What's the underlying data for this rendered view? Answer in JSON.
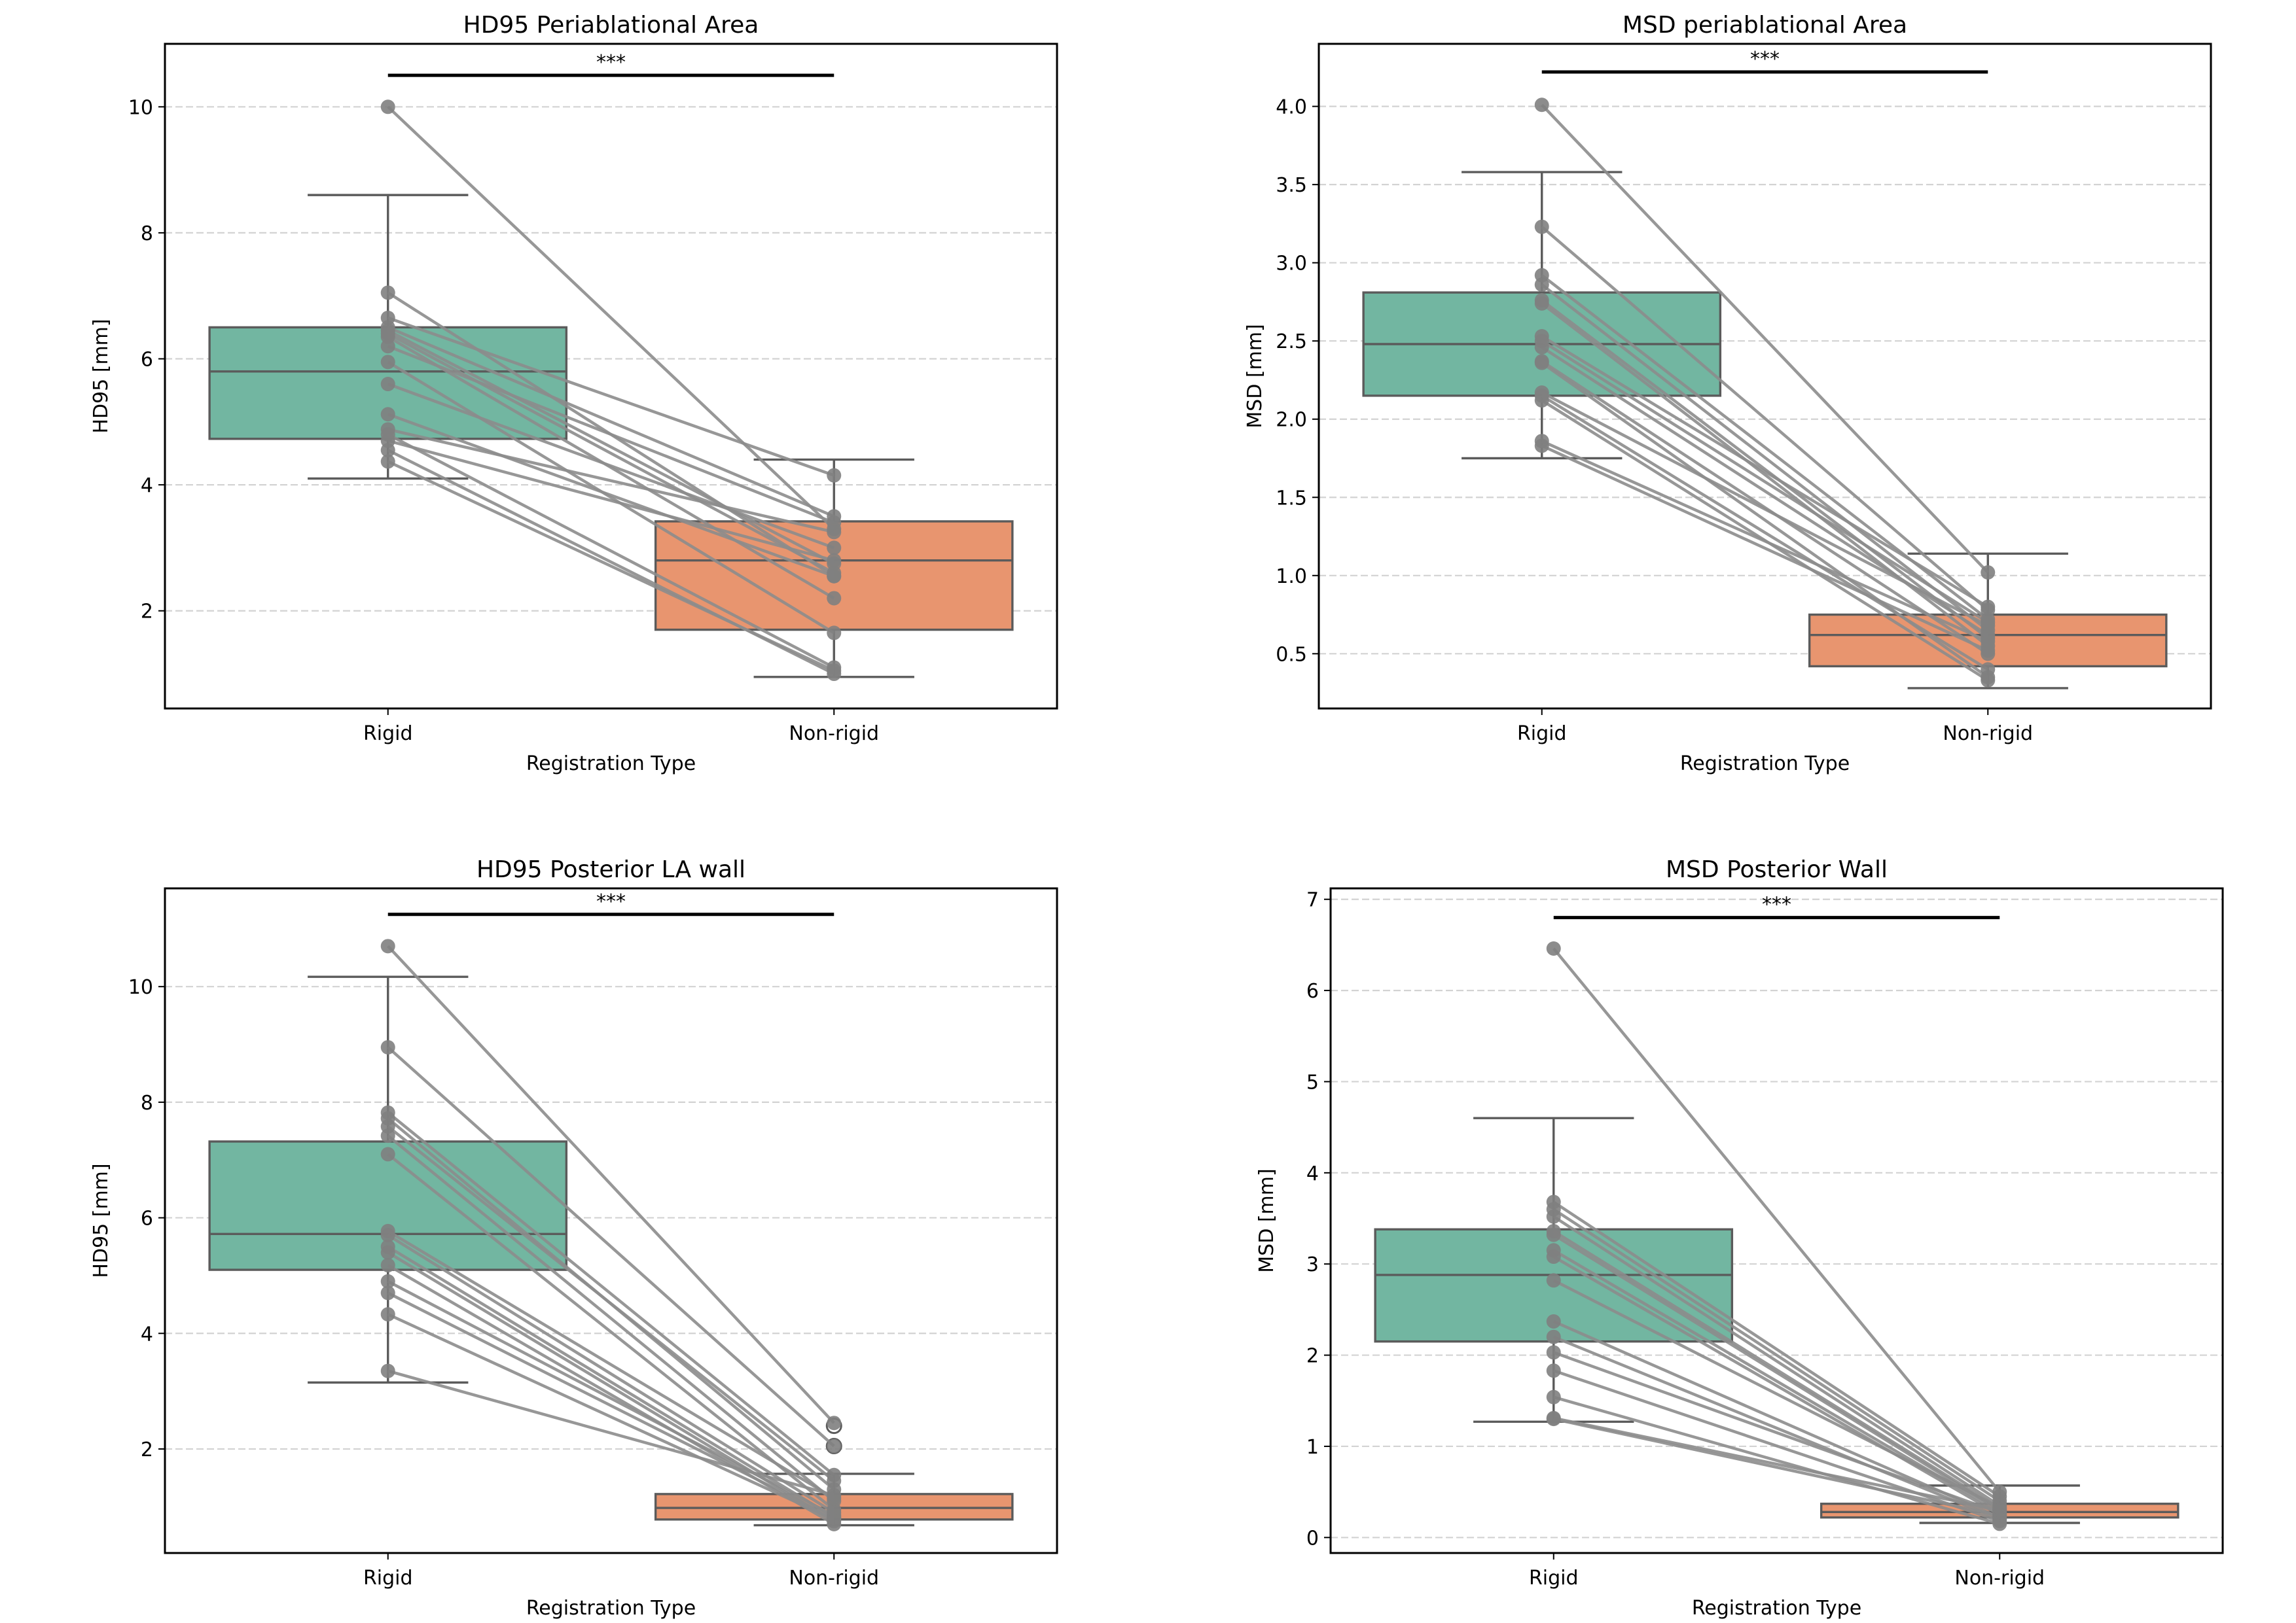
{
  "chart_data": [
    {
      "type": "box",
      "title": "HD95 Periablational Area",
      "xlabel": "Registration Type",
      "ylabel": "HD95 [mm]",
      "categories": [
        "Rigid",
        "Non-rigid"
      ],
      "ylim": [
        0.45,
        11.0
      ],
      "yticks": [
        2,
        4,
        6,
        8,
        10
      ],
      "ytick_labels": [
        "2",
        "4",
        "6",
        "8",
        "10"
      ],
      "grid": "y-dashed",
      "significance": {
        "label": "***",
        "y": 10.5
      },
      "boxes": [
        {
          "category": "Rigid",
          "whisker_low": 4.1,
          "q1": 4.73,
          "median": 5.8,
          "q3": 6.5,
          "whisker_high": 8.6,
          "fliers": []
        },
        {
          "category": "Non-rigid",
          "whisker_low": 0.95,
          "q1": 1.7,
          "median": 2.8,
          "q3": 3.42,
          "whisker_high": 4.4,
          "fliers": []
        }
      ],
      "paired_points": [
        [
          10.0,
          3.3
        ],
        [
          7.05,
          2.55
        ],
        [
          6.65,
          4.15
        ],
        [
          6.5,
          3.5
        ],
        [
          6.45,
          2.75
        ],
        [
          6.4,
          2.6
        ],
        [
          6.35,
          2.2
        ],
        [
          6.2,
          3.4
        ],
        [
          5.95,
          1.65
        ],
        [
          5.6,
          3.0
        ],
        [
          5.12,
          2.55
        ],
        [
          4.88,
          3.25
        ],
        [
          4.8,
          1.1
        ],
        [
          4.7,
          2.8
        ],
        [
          4.55,
          1.0
        ],
        [
          4.37,
          1.05
        ]
      ]
    },
    {
      "type": "box",
      "title": "MSD periablational Area",
      "xlabel": "Registration Type",
      "ylabel": "MSD [mm]",
      "categories": [
        "Rigid",
        "Non-rigid"
      ],
      "ylim": [
        0.15,
        4.4
      ],
      "yticks": [
        0.5,
        1.0,
        1.5,
        2.0,
        2.5,
        3.0,
        3.5,
        4.0
      ],
      "ytick_labels": [
        "0.5",
        "1.0",
        "1.5",
        "2.0",
        "2.5",
        "3.0",
        "3.5",
        "4.0"
      ],
      "grid": "y-dashed",
      "significance": {
        "label": "***",
        "y": 4.22
      },
      "boxes": [
        {
          "category": "Rigid",
          "whisker_low": 1.75,
          "q1": 2.15,
          "median": 2.48,
          "q3": 2.81,
          "whisker_high": 3.58,
          "fliers": []
        },
        {
          "category": "Non-rigid",
          "whisker_low": 0.28,
          "q1": 0.42,
          "median": 0.62,
          "q3": 0.75,
          "whisker_high": 1.14,
          "fliers": []
        }
      ],
      "paired_points": [
        [
          4.01,
          1.02
        ],
        [
          3.23,
          0.78
        ],
        [
          2.92,
          0.72
        ],
        [
          2.86,
          0.65
        ],
        [
          2.76,
          0.6
        ],
        [
          2.74,
          0.55
        ],
        [
          2.53,
          0.8
        ],
        [
          2.5,
          0.7
        ],
        [
          2.46,
          0.62
        ],
        [
          2.37,
          0.5
        ],
        [
          2.36,
          0.35
        ],
        [
          2.17,
          0.68
        ],
        [
          2.15,
          0.4
        ],
        [
          2.12,
          0.33
        ],
        [
          1.86,
          0.58
        ],
        [
          1.83,
          0.52
        ]
      ]
    },
    {
      "type": "box",
      "title": "HD95 Posterior LA wall",
      "xlabel": "Registration Type",
      "ylabel": "HD95 [mm]",
      "categories": [
        "Rigid",
        "Non-rigid"
      ],
      "ylim": [
        0.2,
        11.7
      ],
      "yticks": [
        2,
        4,
        6,
        8,
        10
      ],
      "ytick_labels": [
        "2",
        "4",
        "6",
        "8",
        "10"
      ],
      "grid": "y-dashed",
      "significance": {
        "label": "***",
        "y": 11.25
      },
      "boxes": [
        {
          "category": "Rigid",
          "whisker_low": 3.15,
          "q1": 5.1,
          "median": 5.72,
          "q3": 7.32,
          "whisker_high": 10.17,
          "fliers": []
        },
        {
          "category": "Non-rigid",
          "whisker_low": 0.68,
          "q1": 0.78,
          "median": 0.98,
          "q3": 1.22,
          "whisker_high": 1.57,
          "fliers": [
            2.4,
            2.05
          ]
        }
      ],
      "paired_points": [
        [
          10.7,
          2.45
        ],
        [
          8.95,
          2.05
        ],
        [
          7.82,
          1.55
        ],
        [
          7.72,
          1.3
        ],
        [
          7.58,
          1.45
        ],
        [
          7.42,
          1.1
        ],
        [
          7.1,
          0.95
        ],
        [
          5.77,
          1.15
        ],
        [
          5.7,
          0.9
        ],
        [
          5.5,
          0.82
        ],
        [
          5.4,
          0.75
        ],
        [
          5.18,
          0.7
        ],
        [
          4.9,
          0.85
        ],
        [
          4.7,
          0.8
        ],
        [
          4.33,
          0.78
        ],
        [
          3.35,
          1.2
        ]
      ]
    },
    {
      "type": "box",
      "title": "MSD Posterior Wall",
      "xlabel": "Registration Type",
      "ylabel": "MSD [mm]",
      "categories": [
        "Rigid",
        "Non-rigid"
      ],
      "ylim": [
        -0.17,
        7.12
      ],
      "yticks": [
        0,
        1,
        2,
        3,
        4,
        5,
        6,
        7
      ],
      "ytick_labels": [
        "0",
        "1",
        "2",
        "3",
        "4",
        "5",
        "6",
        "7"
      ],
      "grid": "y-dashed",
      "significance": {
        "label": "***",
        "y": 6.8
      },
      "boxes": [
        {
          "category": "Rigid",
          "whisker_low": 1.27,
          "q1": 2.15,
          "median": 2.88,
          "q3": 3.38,
          "whisker_high": 4.6,
          "fliers": []
        },
        {
          "category": "Non-rigid",
          "whisker_low": 0.16,
          "q1": 0.22,
          "median": 0.28,
          "q3": 0.37,
          "whisker_high": 0.57,
          "fliers": []
        }
      ],
      "paired_points": [
        [
          6.46,
          0.5
        ],
        [
          3.68,
          0.45
        ],
        [
          3.6,
          0.4
        ],
        [
          3.52,
          0.35
        ],
        [
          3.36,
          0.32
        ],
        [
          3.32,
          0.3
        ],
        [
          3.15,
          0.28
        ],
        [
          3.08,
          0.25
        ],
        [
          2.82,
          0.33
        ],
        [
          2.37,
          0.22
        ],
        [
          2.2,
          0.2
        ],
        [
          2.03,
          0.27
        ],
        [
          1.83,
          0.18
        ],
        [
          1.54,
          0.15
        ],
        [
          1.31,
          0.3
        ],
        [
          1.3,
          0.24
        ]
      ]
    }
  ],
  "colors": {
    "rigid_box": "#72b6a1",
    "nonrigid_box": "#e8956f",
    "box_edge": "#5b5b5b",
    "paired_line": "#8c8c8c",
    "point": "#808080",
    "grid": "#d3d3d3",
    "significance_bar": "#000000"
  }
}
